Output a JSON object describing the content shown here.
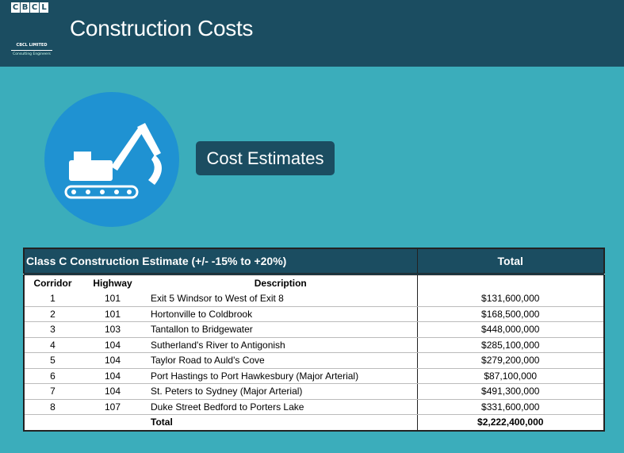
{
  "header": {
    "title": "Construction Costs",
    "logo": {
      "letters": [
        "C",
        "B",
        "C",
        "L"
      ],
      "company": "CBCL LIMITED",
      "tagline": "Consulting Engineers"
    }
  },
  "button": "Cost Estimates",
  "table": {
    "heading": "Class C Construction Estimate (+/-  -15% to +20%)",
    "total_heading": "Total",
    "columns": [
      "Corridor",
      "Highway",
      "Description"
    ],
    "rows": [
      [
        "1",
        "101",
        "Exit 5 Windsor to West of Exit 8",
        "$131,600,000"
      ],
      [
        "2",
        "101",
        "Hortonville to Coldbrook",
        "$168,500,000"
      ],
      [
        "3",
        "103",
        "Tantallon to Bridgewater",
        "$448,000,000"
      ],
      [
        "4",
        "104",
        "Sutherland's River to Antigonish",
        "$285,100,000"
      ],
      [
        "5",
        "104",
        "Taylor Road to Auld's Cove",
        "$279,200,000"
      ],
      [
        "6",
        "104",
        "Port Hastings to Port Hawkesbury (Major Arterial)",
        "$87,100,000"
      ],
      [
        "7",
        "104",
        "St. Peters to Sydney (Major Arterial)",
        "$491,300,000"
      ],
      [
        "8",
        "107",
        "Duke Street Bedford to Porters Lake",
        "$331,600,000"
      ]
    ],
    "total": {
      "label": "Total",
      "value": "$2,222,400,000"
    }
  }
}
